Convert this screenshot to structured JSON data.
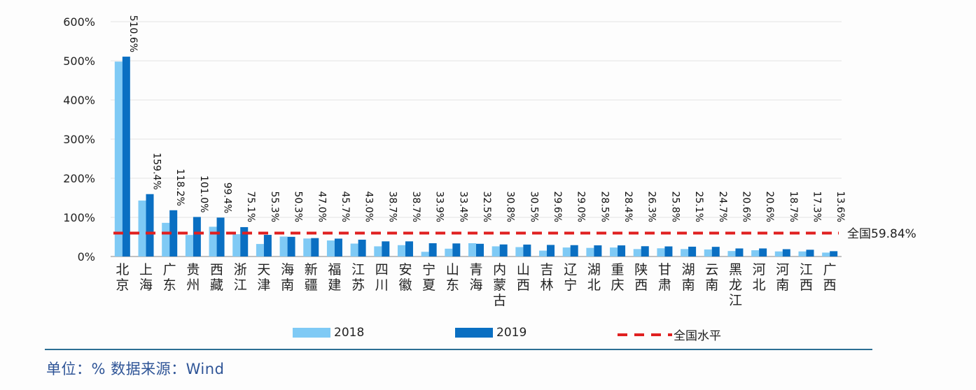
{
  "chart_data": {
    "type": "bar",
    "title": "",
    "xlabel": "",
    "ylabel": "",
    "ylim": [
      0,
      600
    ],
    "yticks": [
      "0%",
      "100%",
      "200%",
      "300%",
      "400%",
      "500%",
      "600%"
    ],
    "grid": true,
    "legend_position": "bottom",
    "categories": [
      "北京",
      "上海",
      "广东",
      "贵州",
      "西藏",
      "浙江",
      "天津",
      "海南",
      "新疆",
      "福建",
      "江苏",
      "四川",
      "安徽",
      "宁夏",
      "山东",
      "青海",
      "内蒙古",
      "山西",
      "吉林",
      "辽宁",
      "湖北",
      "重庆",
      "陕西",
      "甘肃",
      "湖南",
      "云南",
      "黑龙江",
      "河北",
      "河南",
      "江西",
      "广西"
    ],
    "series": [
      {
        "name": "2018",
        "color": "#7fcaf5",
        "values": [
          498,
          143,
          86,
          55,
          76,
          57,
          32,
          51,
          46,
          41,
          33,
          26,
          29,
          12,
          20,
          34,
          26,
          24,
          15,
          23,
          22,
          23,
          19,
          21,
          19,
          18,
          14,
          16,
          13,
          13,
          10
        ]
      },
      {
        "name": "2019",
        "color": "#0a6fc2",
        "values": [
          510.6,
          159.4,
          118.2,
          101.0,
          99.4,
          75.1,
          55.3,
          50.3,
          47.0,
          45.7,
          43.0,
          38.7,
          38.7,
          33.9,
          33.4,
          32.5,
          30.8,
          30.5,
          29.6,
          29.0,
          28.5,
          28.4,
          26.3,
          25.8,
          25.1,
          24.7,
          20.6,
          20.6,
          18.7,
          17.3,
          13.6
        ],
        "labels": [
          "510.6%",
          "159.4%",
          "118.2%",
          "101.0%",
          "99.4%",
          "75.1%",
          "55.3%",
          "50.3%",
          "47.0%",
          "45.7%",
          "43.0%",
          "38.7%",
          "38.7%",
          "33.9%",
          "33.4%",
          "32.5%",
          "30.8%",
          "30.5%",
          "29.6%",
          "29.0%",
          "28.5%",
          "28.4%",
          "26.3%",
          "25.8%",
          "25.1%",
          "24.7%",
          "20.6%",
          "20.6%",
          "18.7%",
          "17.3%",
          "13.6%"
        ]
      }
    ],
    "reference_line": {
      "name": "全国水平",
      "value": 59.84,
      "label": "全国59.84%",
      "color": "#e02020",
      "style": "dashed"
    }
  },
  "legend": {
    "items": [
      {
        "label": "2018",
        "color": "#7fcaf5"
      },
      {
        "label": "2019",
        "color": "#0a6fc2"
      },
      {
        "label": "全国水平",
        "color": "#e02020"
      }
    ]
  },
  "footer": {
    "text": "单位：% 数据来源：Wind"
  }
}
